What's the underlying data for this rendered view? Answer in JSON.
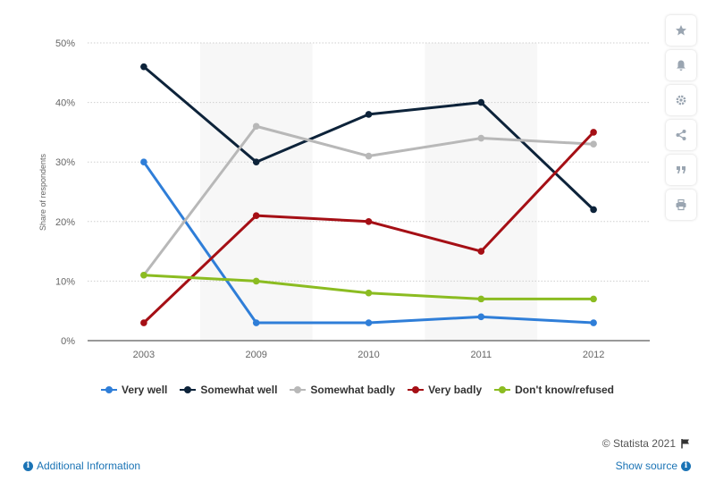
{
  "chart_data": {
    "type": "line",
    "categories": [
      "2003",
      "2009",
      "2010",
      "2011",
      "2012"
    ],
    "ylabel": "Share of respondents",
    "ylim": [
      0,
      50
    ],
    "yticks": [
      "0%",
      "10%",
      "20%",
      "30%",
      "40%",
      "50%"
    ],
    "y_tick_values": [
      0,
      10,
      20,
      30,
      40,
      50
    ],
    "grid": true,
    "legend_position": "bottom",
    "series": [
      {
        "name": "Very well",
        "color": "#2f7ed8",
        "values": [
          30,
          3,
          3,
          4,
          3
        ]
      },
      {
        "name": "Somewhat well",
        "color": "#0d233a",
        "values": [
          46,
          30,
          38,
          40,
          22
        ]
      },
      {
        "name": "Somewhat badly",
        "color": "#b8b8b8",
        "values": [
          11,
          36,
          31,
          34,
          33
        ]
      },
      {
        "name": "Very badly",
        "color": "#a50f15",
        "values": [
          3,
          21,
          20,
          15,
          35
        ]
      },
      {
        "name": "Don't know/refused",
        "color": "#8bbc21",
        "values": [
          11,
          10,
          8,
          7,
          7
        ]
      }
    ]
  },
  "footer": {
    "credit": "© Statista 2021",
    "additional_info": "Additional Information",
    "show_source": "Show source"
  },
  "toolbar": {
    "icons": [
      "star-icon",
      "bell-icon",
      "gear-icon",
      "share-icon",
      "quote-icon",
      "print-icon"
    ]
  }
}
